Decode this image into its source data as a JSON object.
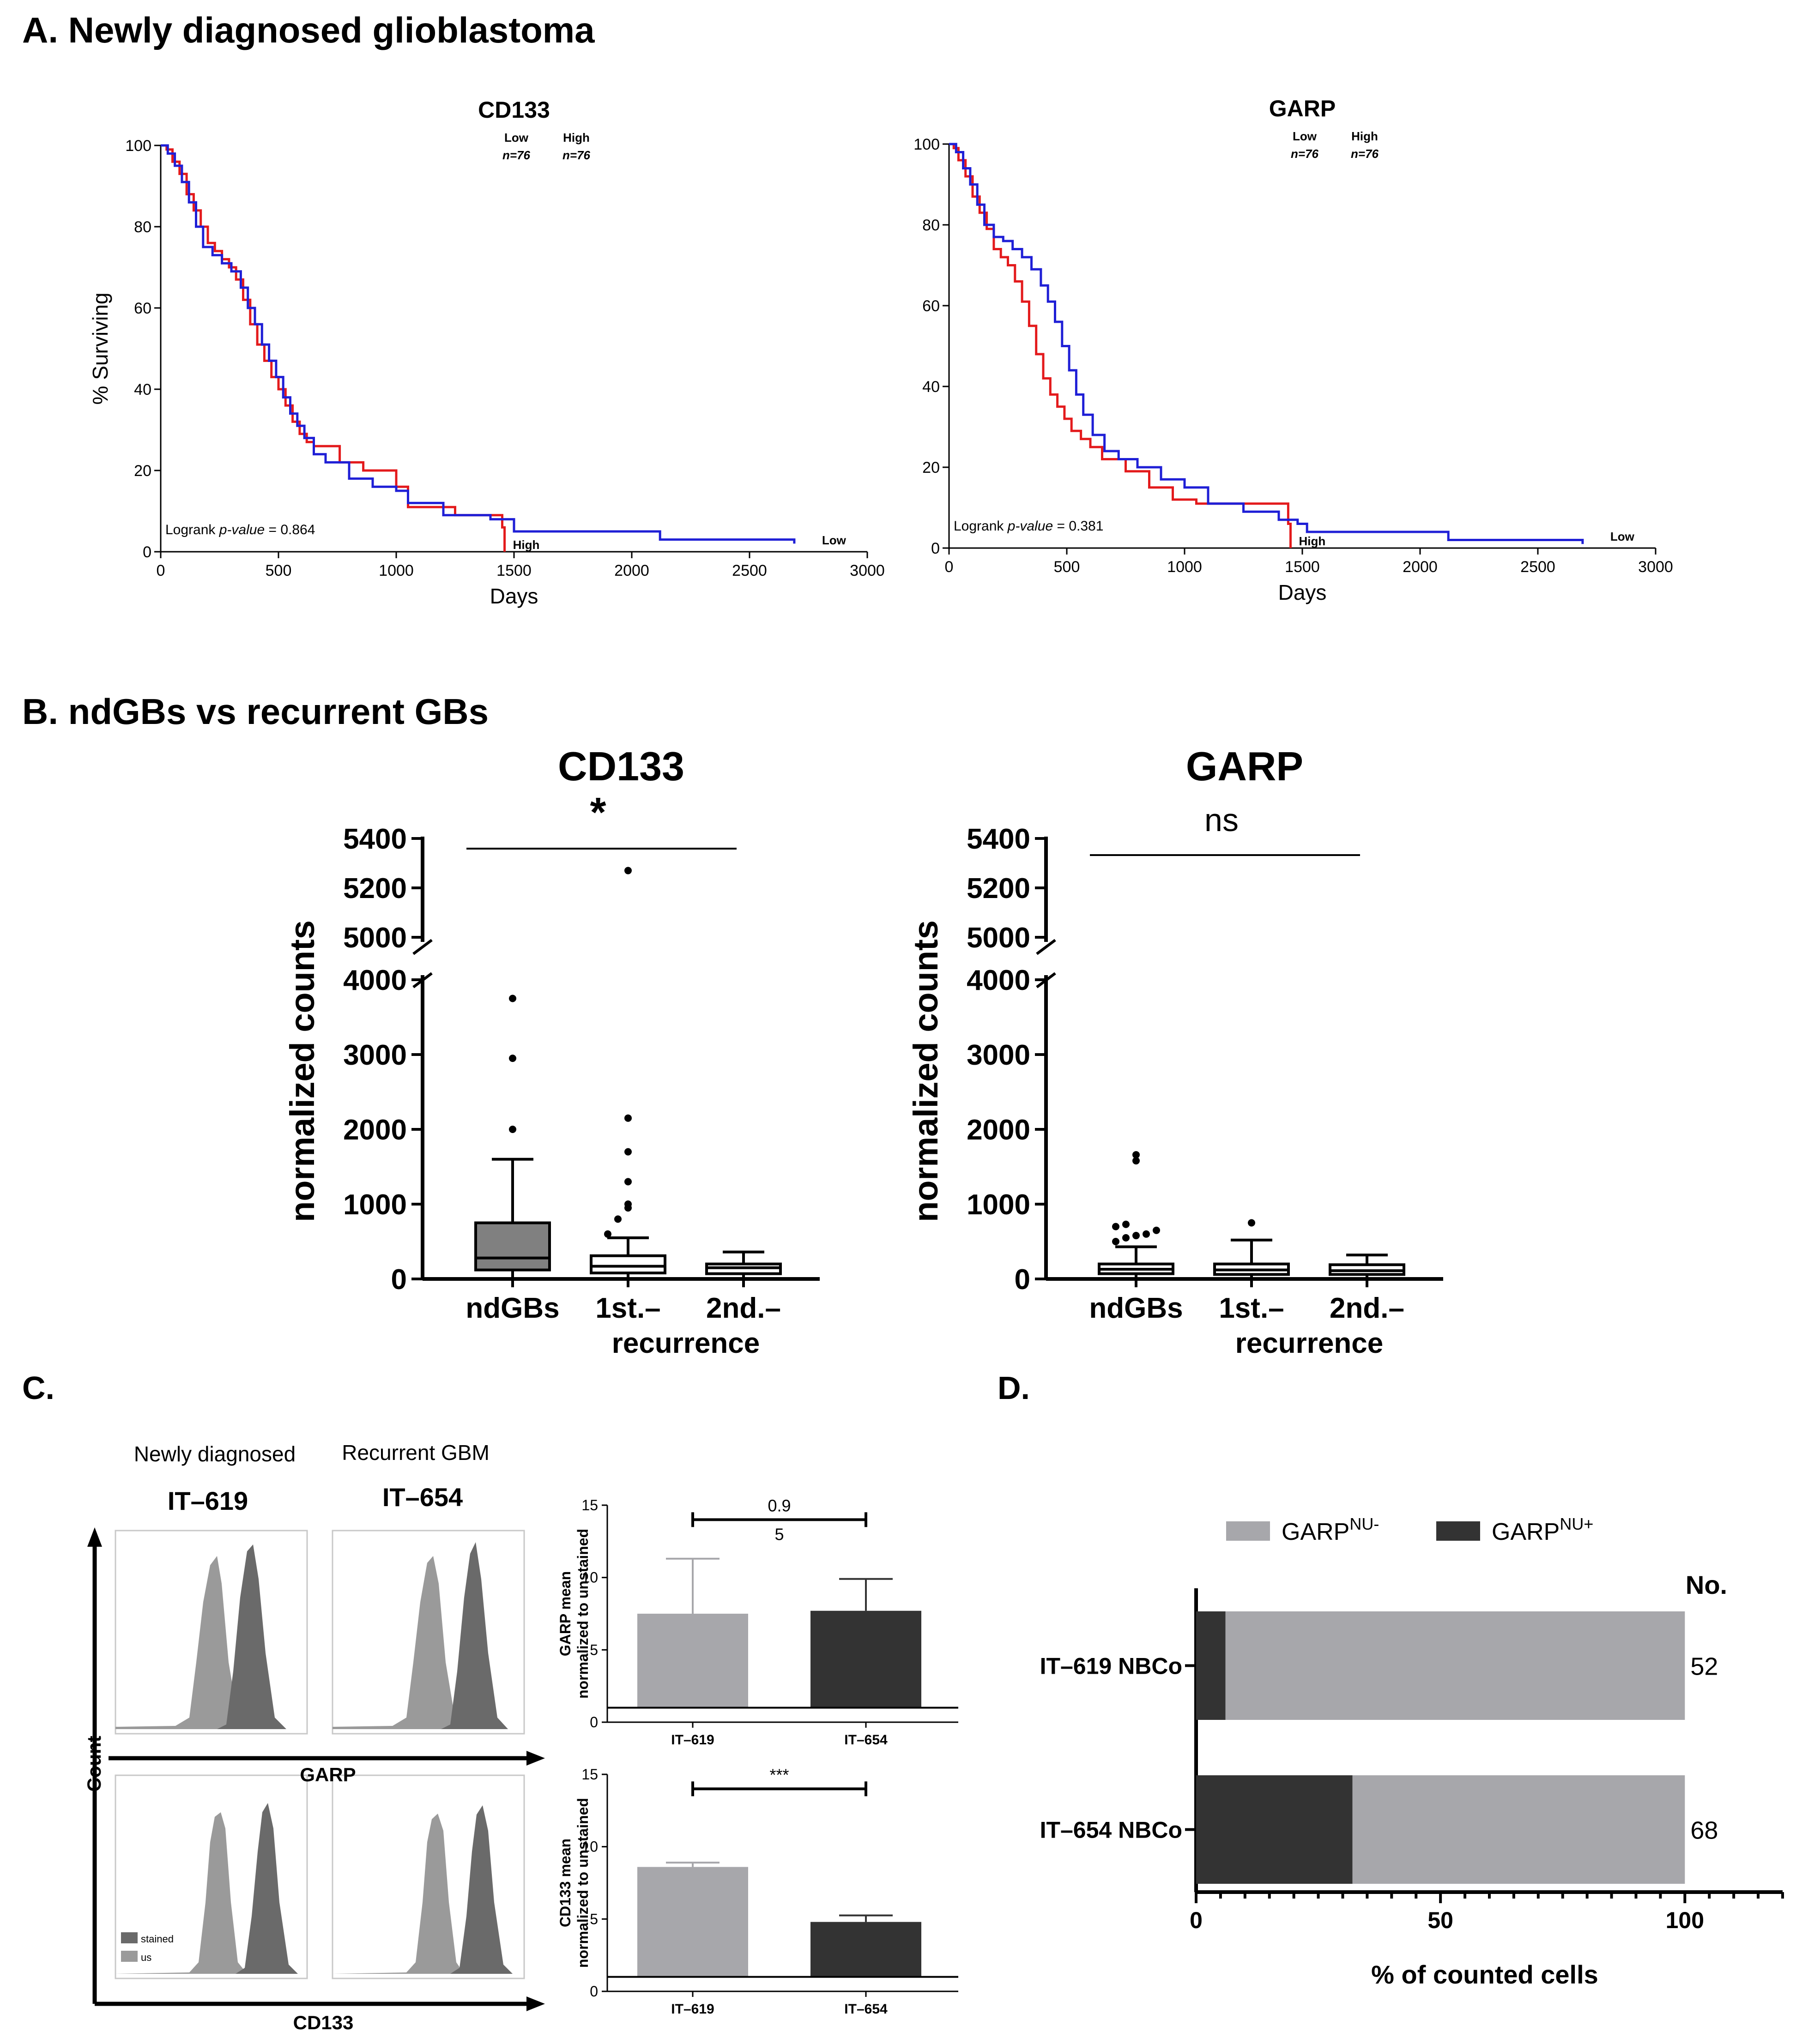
{
  "colors": {
    "high": "#e31a1c",
    "low": "#1f1fd6",
    "axis": "#000000",
    "box_fill": "#808080",
    "box_fill_light": "#ffffff",
    "light_bar": "#a7a7ab",
    "dark_bar": "#333333",
    "hist_light": "#9a9a9a",
    "hist_dark": "#6a6a6a"
  },
  "panels": {
    "a": {
      "title": "A. Newly diagnosed glioblastoma"
    },
    "b": {
      "title": "B. ndGBs vs recurrent GBs"
    },
    "c": {
      "title": "C.",
      "left_condition": "Newly diagnosed",
      "right_condition": "Recurrent GBM",
      "left_sample": "IT–619",
      "right_sample": "IT–654",
      "x_label_top": "GARP",
      "x_label_bottom": "CD133",
      "y_label": "Count",
      "legend_stained": "stained",
      "legend_us": "us"
    },
    "d": {
      "title": "D."
    }
  },
  "chart_data": [
    {
      "id": "km-cd133",
      "type": "line",
      "title": "CD133",
      "xlabel": "Days",
      "ylabel": "% Surviving",
      "xlim": [
        0,
        3000
      ],
      "ylim": [
        0,
        100
      ],
      "xticks": [
        0,
        500,
        1000,
        1500,
        2000,
        2500,
        3000
      ],
      "yticks": [
        0,
        20,
        40,
        60,
        80,
        100
      ],
      "legend_low": "Low",
      "legend_high": "High",
      "n_low": "n=76",
      "n_high": "n=76",
      "pvalue_prefix": "Logrank ",
      "pvalue_italic": "p-value",
      "pvalue_suffix": " = 0.864",
      "end_label_high": "High",
      "end_label_low": "Low",
      "series": [
        {
          "name": "High",
          "points": [
            [
              0,
              100
            ],
            [
              25,
              99
            ],
            [
              50,
              96
            ],
            [
              80,
              93
            ],
            [
              110,
              88
            ],
            [
              140,
              84
            ],
            [
              170,
              80
            ],
            [
              200,
              76
            ],
            [
              230,
              74
            ],
            [
              260,
              72
            ],
            [
              290,
              70
            ],
            [
              320,
              67
            ],
            [
              350,
              62
            ],
            [
              380,
              56
            ],
            [
              410,
              51
            ],
            [
              440,
              47
            ],
            [
              470,
              43
            ],
            [
              500,
              40
            ],
            [
              530,
              36
            ],
            [
              560,
              32
            ],
            [
              590,
              29
            ],
            [
              620,
              27
            ],
            [
              650,
              26
            ],
            [
              700,
              26
            ],
            [
              750,
              26
            ],
            [
              760,
              22
            ],
            [
              850,
              22
            ],
            [
              860,
              20
            ],
            [
              950,
              20
            ],
            [
              1000,
              16
            ],
            [
              1050,
              11
            ],
            [
              1200,
              11
            ],
            [
              1250,
              9
            ],
            [
              1400,
              9
            ],
            [
              1450,
              6
            ],
            [
              1460,
              0
            ]
          ]
        },
        {
          "name": "Low",
          "points": [
            [
              0,
              100
            ],
            [
              30,
              98
            ],
            [
              60,
              95
            ],
            [
              90,
              91
            ],
            [
              120,
              86
            ],
            [
              150,
              80
            ],
            [
              180,
              75
            ],
            [
              220,
              73
            ],
            [
              260,
              71
            ],
            [
              300,
              69
            ],
            [
              340,
              65
            ],
            [
              370,
              60
            ],
            [
              400,
              56
            ],
            [
              430,
              51
            ],
            [
              460,
              47
            ],
            [
              490,
              43
            ],
            [
              520,
              38
            ],
            [
              550,
              34
            ],
            [
              580,
              31
            ],
            [
              610,
              28
            ],
            [
              650,
              24
            ],
            [
              700,
              22
            ],
            [
              800,
              18
            ],
            [
              900,
              16
            ],
            [
              1000,
              15
            ],
            [
              1050,
              12
            ],
            [
              1200,
              9
            ],
            [
              1400,
              8
            ],
            [
              1500,
              5
            ],
            [
              2100,
              5
            ],
            [
              2120,
              3
            ],
            [
              2680,
              3
            ],
            [
              2690,
              2
            ]
          ]
        }
      ]
    },
    {
      "id": "km-garp",
      "type": "line",
      "title": "GARP",
      "xlabel": "Days",
      "ylabel": "",
      "xlim": [
        0,
        3000
      ],
      "ylim": [
        0,
        100
      ],
      "xticks": [
        0,
        500,
        1000,
        1500,
        2000,
        2500,
        3000
      ],
      "yticks": [
        0,
        20,
        40,
        60,
        80,
        100
      ],
      "legend_low": "Low",
      "legend_high": "High",
      "n_low": "n=76",
      "n_high": "n=76",
      "pvalue_prefix": "Logrank ",
      "pvalue_italic": "p-value",
      "pvalue_suffix": " = 0.381",
      "end_label_high": "High",
      "end_label_low": "Low",
      "series": [
        {
          "name": "High",
          "points": [
            [
              0,
              100
            ],
            [
              20,
              99
            ],
            [
              40,
              96
            ],
            [
              70,
              92
            ],
            [
              100,
              87
            ],
            [
              130,
              83
            ],
            [
              160,
              79
            ],
            [
              190,
              74
            ],
            [
              220,
              72
            ],
            [
              250,
              70
            ],
            [
              280,
              66
            ],
            [
              310,
              61
            ],
            [
              340,
              55
            ],
            [
              370,
              48
            ],
            [
              400,
              42
            ],
            [
              430,
              38
            ],
            [
              460,
              35
            ],
            [
              490,
              32
            ],
            [
              520,
              29
            ],
            [
              560,
              27
            ],
            [
              600,
              25
            ],
            [
              650,
              22
            ],
            [
              750,
              19
            ],
            [
              850,
              15
            ],
            [
              950,
              12
            ],
            [
              1050,
              11
            ],
            [
              1400,
              11
            ],
            [
              1440,
              6
            ],
            [
              1450,
              0
            ]
          ]
        },
        {
          "name": "Low",
          "points": [
            [
              0,
              100
            ],
            [
              30,
              98
            ],
            [
              60,
              94
            ],
            [
              90,
              90
            ],
            [
              120,
              85
            ],
            [
              150,
              80
            ],
            [
              190,
              77
            ],
            [
              230,
              76
            ],
            [
              270,
              74
            ],
            [
              310,
              72
            ],
            [
              350,
              69
            ],
            [
              390,
              65
            ],
            [
              420,
              61
            ],
            [
              450,
              56
            ],
            [
              480,
              50
            ],
            [
              510,
              44
            ],
            [
              540,
              38
            ],
            [
              570,
              33
            ],
            [
              610,
              28
            ],
            [
              660,
              24
            ],
            [
              720,
              22
            ],
            [
              800,
              20
            ],
            [
              900,
              17
            ],
            [
              1000,
              15
            ],
            [
              1100,
              11
            ],
            [
              1250,
              9
            ],
            [
              1400,
              7
            ],
            [
              1480,
              6
            ],
            [
              1520,
              4
            ],
            [
              2100,
              4
            ],
            [
              2120,
              2
            ],
            [
              2680,
              2
            ],
            [
              2690,
              1
            ]
          ]
        }
      ]
    },
    {
      "id": "box-cd133",
      "type": "box",
      "title": "CD133",
      "ylabel": "normalized counts",
      "yticks": [
        "0",
        "1000",
        "2000",
        "3000",
        "4000",
        "5000",
        "5200",
        "5400"
      ],
      "categories": [
        "ndGBs",
        "1st.–",
        "2nd.–"
      ],
      "group_label": "recurrence",
      "significance": "*",
      "boxes": [
        {
          "whisker_low": 0,
          "q1": 120,
          "median": 280,
          "q3": 750,
          "whisker_high": 1600,
          "outliers": [
            2000,
            2950,
            3750
          ],
          "fill": "dark"
        },
        {
          "whisker_low": 0,
          "q1": 80,
          "median": 170,
          "q3": 310,
          "whisker_high": 550,
          "outliers": [
            600,
            800,
            950,
            1000,
            1300,
            1700,
            2150,
            5270
          ],
          "fill": "light"
        },
        {
          "whisker_low": 0,
          "q1": 70,
          "median": 150,
          "q3": 200,
          "whisker_high": 360,
          "outliers": [],
          "fill": "light"
        }
      ]
    },
    {
      "id": "box-garp",
      "type": "box",
      "title": "GARP",
      "ylabel": "normalized counts",
      "yticks": [
        "0",
        "1000",
        "2000",
        "3000",
        "4000",
        "5000",
        "5200",
        "5400"
      ],
      "categories": [
        "ndGBs",
        "1st.–",
        "2nd.–"
      ],
      "group_label": "recurrence",
      "significance": "ns",
      "boxes": [
        {
          "whisker_low": 0,
          "q1": 70,
          "median": 130,
          "q3": 200,
          "whisker_high": 430,
          "outliers": [
            500,
            550,
            580,
            600,
            650,
            700,
            730,
            1580,
            1660
          ],
          "fill": "light"
        },
        {
          "whisker_low": 0,
          "q1": 60,
          "median": 120,
          "q3": 200,
          "whisker_high": 520,
          "outliers": [
            750
          ],
          "fill": "light"
        },
        {
          "whisker_low": 0,
          "q1": 60,
          "median": 110,
          "q3": 190,
          "whisker_high": 320,
          "outliers": [],
          "fill": "light"
        }
      ]
    },
    {
      "id": "bar-garp-mean",
      "type": "bar",
      "ylabel_line1": "GARP mean",
      "ylabel_line2": "normalized to unstained",
      "categories": [
        "IT–619",
        "IT–654"
      ],
      "values": [
        7.5,
        7.7
      ],
      "errors": [
        3.8,
        2.2
      ],
      "ylim": [
        0,
        15
      ],
      "yticks": [
        0,
        5,
        10,
        15
      ],
      "baseline": 1,
      "significance_line1": "0.9",
      "significance_line2": "5"
    },
    {
      "id": "bar-cd133-mean",
      "type": "bar",
      "ylabel_line1": "CD133 mean",
      "ylabel_line2": "normalized to unstained",
      "categories": [
        "IT–619",
        "IT–654"
      ],
      "values": [
        8.6,
        4.8
      ],
      "errors": [
        0.3,
        0.45
      ],
      "ylim": [
        0,
        15
      ],
      "yticks": [
        0,
        5,
        10,
        15
      ],
      "baseline": 1,
      "significance_line1": "***",
      "significance_line2": ""
    },
    {
      "id": "stacked-nuclear",
      "type": "bar",
      "orientation": "horizontal",
      "categories": [
        "IT–619 NBCo",
        "IT–654 NBCo"
      ],
      "series": [
        {
          "name": "GARP",
          "sup": "NU+",
          "values": [
            6,
            32
          ]
        },
        {
          "name": "GARP",
          "sup": "NU-",
          "values": [
            94,
            68
          ]
        }
      ],
      "counts": [
        "52",
        "68"
      ],
      "counts_header": "No.",
      "xlabel": "% of counted cells",
      "xlim": [
        0,
        120
      ],
      "xticks": [
        0,
        50,
        100
      ]
    }
  ]
}
